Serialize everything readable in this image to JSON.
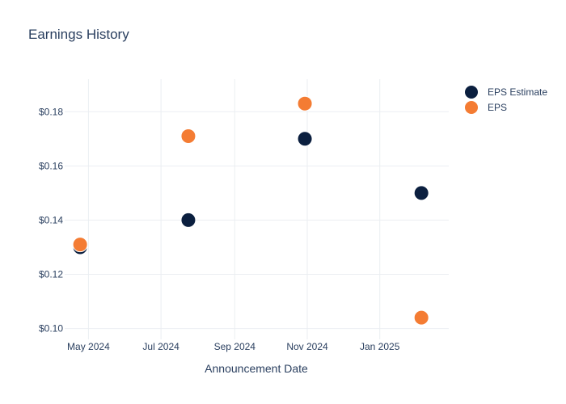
{
  "chart_data": {
    "type": "scatter",
    "title": "Earnings History",
    "xlabel": "Announcement Date",
    "ylabel": "",
    "x_ticks": [
      "May 2024",
      "Jul 2024",
      "Sep 2024",
      "Nov 2024",
      "Jan 2025"
    ],
    "x_tick_dates": [
      "2024-05-01",
      "2024-07-01",
      "2024-09-01",
      "2024-11-01",
      "2025-01-01"
    ],
    "x_range": [
      "2024-04-11",
      "2025-02-28"
    ],
    "y_ticks": [
      "$0.10",
      "$0.12",
      "$0.14",
      "$0.16",
      "$0.18"
    ],
    "y_tick_values": [
      0.1,
      0.12,
      0.14,
      0.16,
      0.18
    ],
    "ylim": [
      0.096,
      0.192
    ],
    "grid": true,
    "legend_position": "top-right",
    "series": [
      {
        "name": "EPS Estimate",
        "color": "#0b1f3f",
        "x": [
          "2024-04-24",
          "2024-07-24",
          "2024-10-30",
          "2025-02-05"
        ],
        "y": [
          0.13,
          0.14,
          0.17,
          0.15
        ]
      },
      {
        "name": "EPS",
        "color": "#f47c33",
        "x": [
          "2024-04-24",
          "2024-07-24",
          "2024-10-30",
          "2025-02-05"
        ],
        "y": [
          0.131,
          0.171,
          0.183,
          0.104
        ]
      }
    ]
  }
}
